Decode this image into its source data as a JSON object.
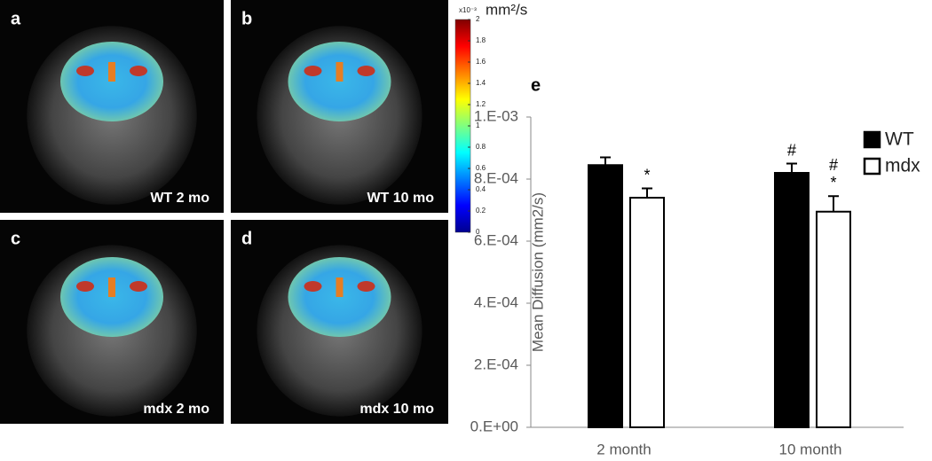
{
  "panels": [
    {
      "letter": "a",
      "caption": "WT 2 mo"
    },
    {
      "letter": "b",
      "caption": "WT 10 mo"
    },
    {
      "letter": "c",
      "caption": "mdx 2 mo"
    },
    {
      "letter": "d",
      "caption": "mdx 10 mo"
    }
  ],
  "colorbar": {
    "multiplier": "x10⁻³",
    "unit": "mm²/s",
    "lim": [
      0,
      2
    ],
    "ticks": [
      0,
      0.2,
      0.4,
      0.6,
      0.8,
      1,
      1.2,
      1.4,
      1.6,
      1.8,
      2
    ]
  },
  "chart_data": {
    "type": "bar",
    "panel": "e",
    "y_label": "Mean Diffusion (mm2/s)",
    "categories": [
      "2 month",
      "10 month"
    ],
    "series": [
      {
        "name": "WT",
        "color": "#000000",
        "values": [
          0.000845,
          0.00082
        ],
        "errors": [
          2.5e-05,
          3e-05
        ],
        "annotations": [
          [],
          [
            "#"
          ]
        ]
      },
      {
        "name": "mdx",
        "color": "#ffffff",
        "values": [
          0.00074,
          0.000695
        ],
        "errors": [
          3e-05,
          5e-05
        ],
        "annotations": [
          [
            "*"
          ],
          [
            "#",
            "*"
          ]
        ]
      }
    ],
    "ylim": [
      0,
      0.001
    ],
    "yticks": [
      {
        "value": 0,
        "label": "0.E+00"
      },
      {
        "value": 0.0002,
        "label": "2.E-04"
      },
      {
        "value": 0.0004,
        "label": "4.E-04"
      },
      {
        "value": 0.0006,
        "label": "6.E-04"
      },
      {
        "value": 0.0008,
        "label": "8.E-04"
      },
      {
        "value": 0.001,
        "label": "1.E-03"
      }
    ],
    "grid": false,
    "legend": "top-right"
  }
}
